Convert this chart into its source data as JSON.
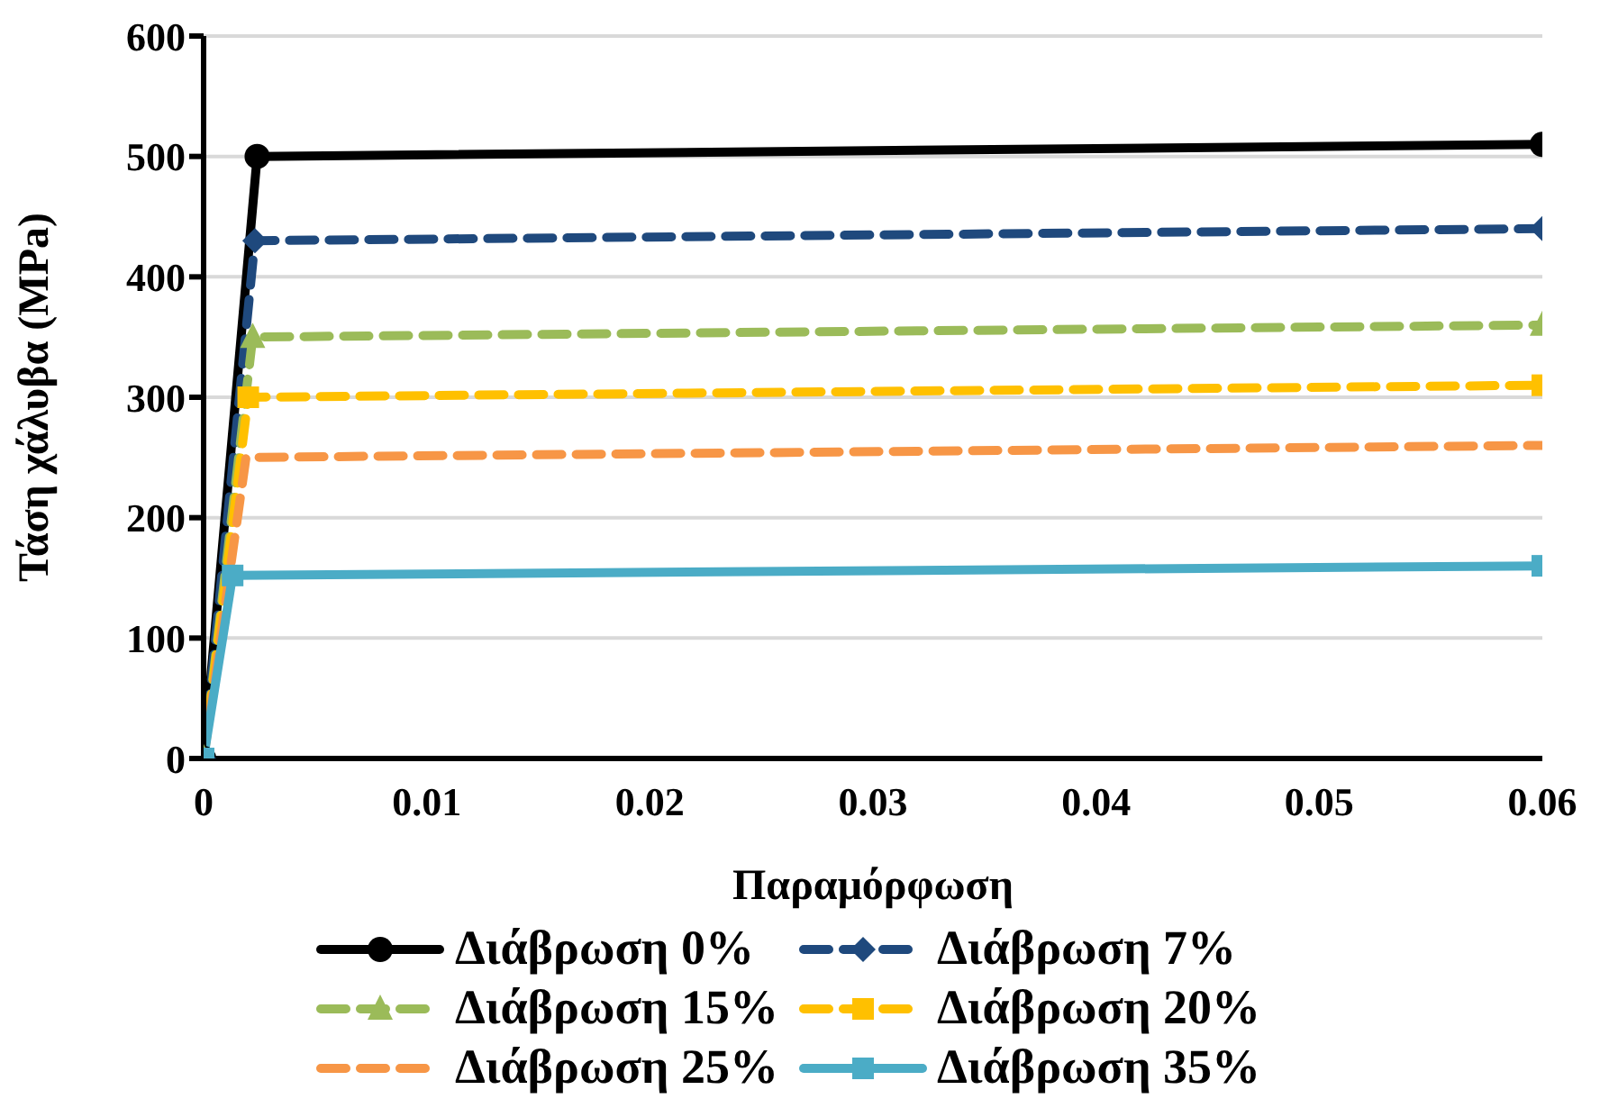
{
  "chart_data": {
    "type": "line",
    "xlabel": "Παραμόρφωση",
    "ylabel": "Τάση χάλυβα (MPa)",
    "xlim": [
      0,
      0.06
    ],
    "xticks": [
      0,
      0.01,
      0.02,
      0.03,
      0.04,
      0.05,
      0.06
    ],
    "ylim": [
      0,
      600
    ],
    "yticks": [
      0,
      100,
      200,
      300,
      400,
      500,
      600
    ],
    "grid": "y",
    "legend": "bottom",
    "series": [
      {
        "name": "Διάβρωση 0%",
        "color": "#000000",
        "x": [
          0,
          0.0024,
          0.06
        ],
        "values": [
          0,
          500,
          510
        ],
        "marker": "circle",
        "line_style": "solid"
      },
      {
        "name": "Διάβρωση 7%",
        "color": "#1f497d",
        "x": [
          0,
          0.0023,
          0.06
        ],
        "values": [
          0,
          430,
          440
        ],
        "marker": "diamond",
        "line_style": "dashed"
      },
      {
        "name": "Διάβρωση 15%",
        "color": "#9bbb59",
        "x": [
          0,
          0.0022,
          0.06
        ],
        "values": [
          0,
          350,
          360
        ],
        "marker": "triangle",
        "line_style": "dashed"
      },
      {
        "name": "Διάβρωση 20%",
        "color": "#ffc000",
        "x": [
          0,
          0.002,
          0.06
        ],
        "values": [
          0,
          300,
          310
        ],
        "marker": "square",
        "line_style": "dashed"
      },
      {
        "name": "Διάβρωση 25%",
        "color": "#f79646",
        "x": [
          0,
          0.0019,
          0.06
        ],
        "values": [
          0,
          250,
          260
        ],
        "marker": "none",
        "line_style": "dashed"
      },
      {
        "name": "Διάβρωση 35%",
        "color": "#4bacc6",
        "x": [
          0,
          0.0013,
          0.06
        ],
        "values": [
          0,
          152,
          160
        ],
        "marker": "square",
        "line_style": "solid"
      }
    ]
  }
}
